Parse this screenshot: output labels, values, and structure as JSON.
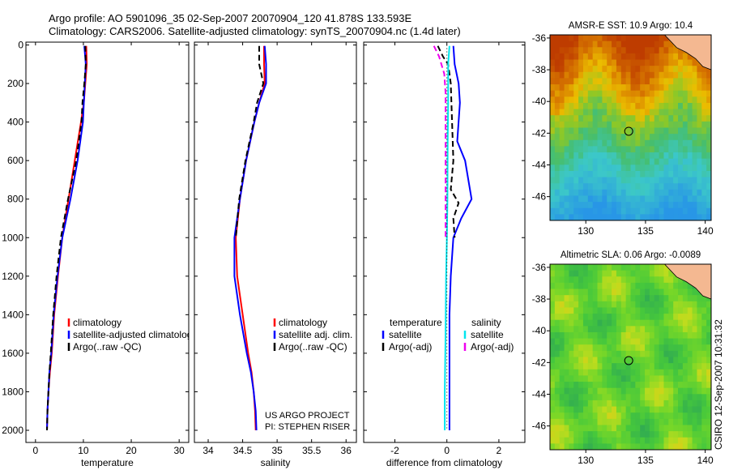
{
  "header": {
    "line1": "Argo profile: AO 5901096_35 02-Sep-2007 20070904_120 41.878S 133.593E",
    "line2": "Climatology: CARS2006. Satellite-adjusted climatology: synTS_20070904.nc (1.4d later)"
  },
  "credits": {
    "project": "US ARGO PROJECT",
    "pi": "PI: STEPHEN RISER",
    "csiro": "CSIRO 12-Sep-2007 10:31:32"
  },
  "colors": {
    "climatology": "#ff0000",
    "satellite": "#0000ff",
    "argo": "#000000",
    "salinity_satellite": "#00e5ee",
    "salinity_argo": "#ee00ee",
    "land": "#f4b891",
    "marker": "#000000"
  },
  "chart_data": [
    {
      "type": "line",
      "id": "temperature",
      "xlabel": "temperature",
      "ylabel": "",
      "xlim": [
        -2,
        32
      ],
      "ylim": [
        2050,
        0
      ],
      "xticks": [
        0,
        10,
        20,
        30
      ],
      "yticks": [
        0,
        200,
        400,
        600,
        800,
        1000,
        1200,
        1400,
        1600,
        1800,
        2000
      ],
      "legend": {
        "placement": "bottom-right",
        "entries": [
          "climatology",
          "satellite-adjusted climatology",
          "Argo(..raw -QC)"
        ]
      },
      "series": [
        {
          "name": "climatology",
          "color_key": "climatology",
          "x": [
            10.6,
            10.7,
            10.4,
            10.1,
            9.5,
            8.2,
            6.9,
            5.6,
            4.7,
            3.9,
            3.4,
            3.0,
            2.7,
            2.5,
            2.4
          ],
          "y": [
            5,
            100,
            200,
            300,
            400,
            600,
            800,
            1000,
            1200,
            1400,
            1600,
            1700,
            1800,
            1900,
            2000
          ]
        },
        {
          "name": "satellite-adjusted climatology",
          "color_key": "satellite",
          "x": [
            10.2,
            10.5,
            10.3,
            10.1,
            9.9,
            8.8,
            7.3,
            5.6,
            4.6,
            3.8,
            3.3,
            2.9,
            2.7,
            2.5,
            2.4
          ],
          "y": [
            5,
            100,
            200,
            300,
            400,
            600,
            800,
            1000,
            1200,
            1400,
            1600,
            1700,
            1800,
            1900,
            2000
          ]
        },
        {
          "name": "Argo(..raw -QC)",
          "color_key": "argo",
          "x": [
            10.4,
            10.5,
            10.2,
            9.8,
            9.6,
            8.5,
            6.8,
            5.3,
            4.4,
            3.7,
            3.2,
            2.9,
            2.7,
            2.5,
            2.4
          ],
          "y": [
            5,
            100,
            200,
            300,
            400,
            600,
            800,
            1000,
            1200,
            1400,
            1600,
            1700,
            1800,
            1900,
            2000
          ]
        }
      ]
    },
    {
      "type": "line",
      "id": "salinity",
      "xlabel": "salinity",
      "ylabel": "",
      "xlim": [
        33.8,
        36.15
      ],
      "ylim": [
        2050,
        0
      ],
      "xticks": [
        34,
        34.5,
        35,
        35.5,
        36
      ],
      "legend": {
        "placement": "bottom-right",
        "entries": [
          "climatology",
          "satellite adj. clim.",
          "Argo(..raw -QC)"
        ]
      },
      "series": [
        {
          "name": "climatology",
          "color_key": "climatology",
          "x": [
            34.81,
            34.81,
            34.82,
            34.74,
            34.67,
            34.55,
            34.46,
            34.4,
            34.42,
            34.5,
            34.58,
            34.63,
            34.66,
            34.68,
            34.69
          ],
          "y": [
            5,
            100,
            200,
            300,
            400,
            600,
            800,
            1000,
            1200,
            1400,
            1600,
            1700,
            1800,
            1900,
            2000
          ]
        },
        {
          "name": "satellite adj. clim.",
          "color_key": "satellite",
          "x": [
            34.82,
            34.84,
            34.84,
            34.74,
            34.67,
            34.55,
            34.46,
            34.38,
            34.38,
            34.46,
            34.56,
            34.62,
            34.66,
            34.69,
            34.7
          ],
          "y": [
            5,
            100,
            200,
            300,
            400,
            600,
            800,
            1000,
            1200,
            1400,
            1600,
            1700,
            1800,
            1900,
            2000
          ]
        },
        {
          "name": "Argo(..raw -QC)",
          "color_key": "argo",
          "x": [
            34.74,
            34.74,
            34.8,
            34.71,
            34.66,
            34.54,
            34.45,
            34.4
          ],
          "y": [
            5,
            100,
            200,
            300,
            400,
            600,
            800,
            1000
          ]
        }
      ]
    },
    {
      "type": "line",
      "id": "difference",
      "xlabel": "difference from climatology",
      "ylabel": "",
      "xlim": [
        -3.2,
        3.0
      ],
      "ylim": [
        2050,
        0
      ],
      "xticks": [
        -2,
        0,
        2
      ],
      "legend": {
        "placement": "bottom-right",
        "entries": [
          "temperature",
          "satellite",
          "Argo(-adj)",
          "salinity",
          "satellite",
          "Argo(-adj)"
        ]
      },
      "series": [
        {
          "name": "temperature satellite",
          "color_key": "satellite",
          "x": [
            0.25,
            0.3,
            0.45,
            0.5,
            0.4,
            0.7,
            0.95,
            0.55,
            0.25,
            0.15,
            0.1,
            0.1,
            0.1,
            0.1
          ],
          "y": [
            5,
            100,
            200,
            300,
            500,
            600,
            800,
            900,
            1000,
            1200,
            1400,
            1600,
            1800,
            2000
          ]
        },
        {
          "name": "temperature Argo(-adj)",
          "color_key": "argo",
          "x": [
            -0.35,
            -0.15,
            0.05,
            0.15,
            0.2,
            0.25,
            0.15,
            0.45,
            0.25,
            0.3
          ],
          "y": [
            5,
            60,
            100,
            200,
            400,
            600,
            750,
            820,
            900,
            1000
          ]
        },
        {
          "name": "salinity satellite",
          "color_key": "salinity_satellite",
          "x": [
            0.1,
            0.05,
            0.05,
            0.03,
            0.02,
            0.0,
            -0.03,
            -0.05,
            -0.08,
            -0.08
          ],
          "y": [
            5,
            100,
            300,
            500,
            800,
            1000,
            1200,
            1500,
            1800,
            2000
          ]
        },
        {
          "name": "salinity Argo(-adj)",
          "color_key": "salinity_argo",
          "x": [
            -0.5,
            -0.3,
            -0.1,
            -0.05,
            -0.05,
            -0.05,
            -0.05,
            -0.05,
            -0.05
          ],
          "y": [
            5,
            60,
            150,
            250,
            400,
            600,
            750,
            850,
            1000
          ]
        },
        {
          "name": "zero",
          "color_key": "argo",
          "dotted": true,
          "x": [
            0,
            0
          ],
          "y": [
            0,
            2000
          ]
        }
      ]
    },
    {
      "type": "heatmap",
      "id": "sst_map",
      "title": "AMSR-E SST: 10.9 Argo: 10.4",
      "xlim": [
        127,
        140.5
      ],
      "ylim": [
        -47.5,
        -35.8
      ],
      "xticks": [
        130,
        135,
        140
      ],
      "yticks": [
        -36,
        -38,
        -40,
        -42,
        -44,
        -46
      ],
      "marker": {
        "lon": 133.593,
        "lat": -41.878
      }
    },
    {
      "type": "heatmap",
      "id": "sla_map",
      "title": "Altimetric SLA: 0.06 Argo: -0.0089",
      "xlim": [
        127,
        140.5
      ],
      "ylim": [
        -47.5,
        -35.8
      ],
      "xticks": [
        130,
        135,
        140
      ],
      "yticks": [
        -36,
        -38,
        -40,
        -42,
        -44,
        -46
      ],
      "marker": {
        "lon": 133.593,
        "lat": -41.878
      }
    }
  ]
}
